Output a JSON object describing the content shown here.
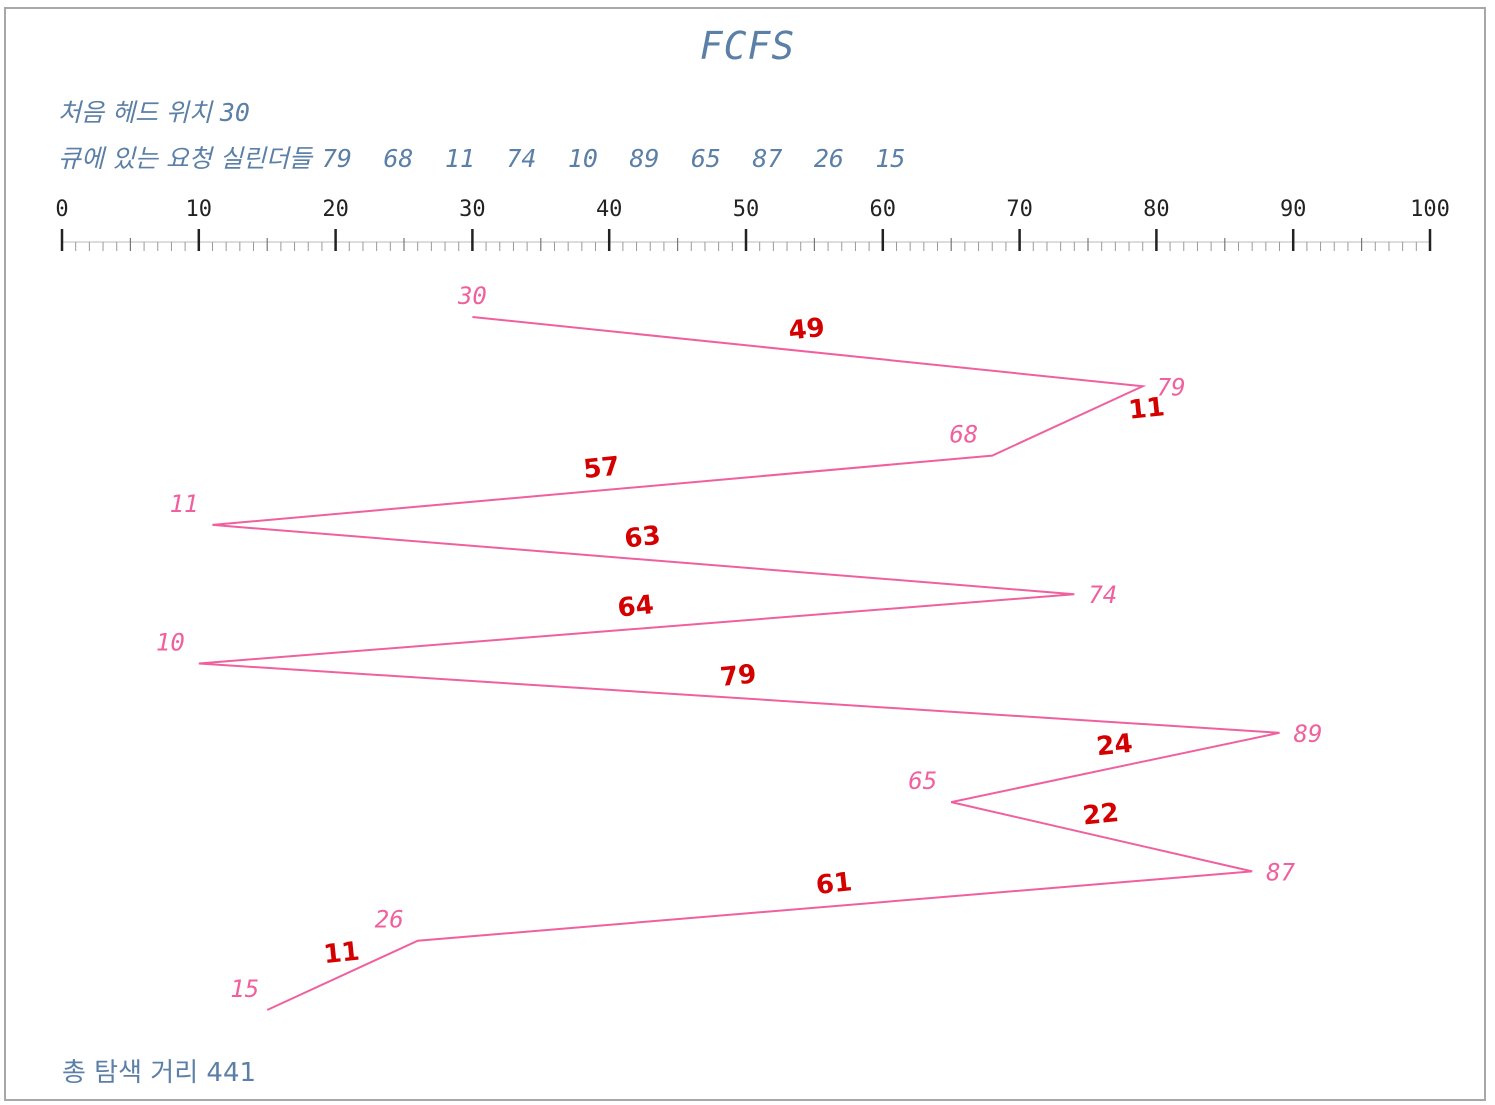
{
  "title": "FCFS",
  "head_label": "처음 헤드 위치",
  "head_value": "30",
  "queue_label": "큐에 있는 요청 실린더들",
  "queue": [
    "79",
    "68",
    "11",
    "74",
    "10",
    "89",
    "65",
    "87",
    "26",
    "15"
  ],
  "footer_label": "총 탐색 거리",
  "footer_value": "441",
  "colors": {
    "text": "#5b7fa6",
    "path": "#f0609e",
    "annotation": "#d40000",
    "ruler": "#222222"
  },
  "chart_data": {
    "type": "line",
    "xlim": [
      0,
      100
    ],
    "x_ticks": [
      "0",
      "10",
      "20",
      "30",
      "40",
      "50",
      "60",
      "70",
      "80",
      "90",
      "100"
    ],
    "sequence": [
      30,
      79,
      68,
      11,
      74,
      10,
      89,
      65,
      87,
      26,
      15
    ],
    "sequence_labels": [
      "30",
      "79",
      "68",
      "11",
      "74",
      "10",
      "89",
      "65",
      "87",
      "26",
      "15"
    ],
    "segment_distances": [
      "49",
      "11",
      "57",
      "63",
      "64",
      "79",
      "24",
      "22",
      "61",
      "11"
    ]
  }
}
